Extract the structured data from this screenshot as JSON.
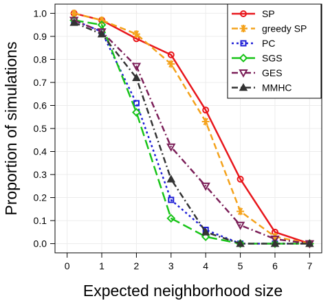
{
  "chart_data": {
    "type": "line",
    "title": "",
    "xlabel": "Expected neighborhood size",
    "ylabel": "Proportion of simulations",
    "xlim": [
      -0.35,
      7.35
    ],
    "ylim": [
      -0.04,
      1.04
    ],
    "xticks": [
      0,
      1,
      2,
      3,
      4,
      5,
      6,
      7
    ],
    "yticks": [
      0.0,
      0.1,
      0.2,
      0.3,
      0.4,
      0.5,
      0.6,
      0.7,
      0.8,
      0.9,
      1.0
    ],
    "ytick_labels": [
      "0.0",
      "0.1",
      "0.2",
      "0.3",
      "0.4",
      "0.5",
      "0.6",
      "0.7",
      "0.8",
      "0.9",
      "1.0"
    ],
    "grid": true,
    "legend_position": "top-right",
    "x": [
      0.2,
      1,
      2,
      3,
      4,
      5,
      6,
      7
    ],
    "series": [
      {
        "name": "SP",
        "color": "#e8161b",
        "dash": "solid",
        "marker": "circle",
        "values": [
          1.0,
          0.97,
          0.89,
          0.82,
          0.58,
          0.28,
          0.05,
          0.0
        ]
      },
      {
        "name": "greedy SP",
        "color": "#f4a21b",
        "dash": "dashed",
        "marker": "asterisk",
        "values": [
          1.0,
          0.97,
          0.91,
          0.78,
          0.53,
          0.14,
          0.03,
          0.0
        ]
      },
      {
        "name": "PC",
        "color": "#1c1cd6",
        "dash": "dotted",
        "marker": "square",
        "values": [
          0.97,
          0.92,
          0.61,
          0.19,
          0.06,
          0.0,
          0.0,
          0.0
        ]
      },
      {
        "name": "SGS",
        "color": "#18c418",
        "dash": "longdash",
        "marker": "diamond",
        "values": [
          0.97,
          0.95,
          0.57,
          0.11,
          0.03,
          0.0,
          0.0,
          0.0
        ]
      },
      {
        "name": "GES",
        "color": "#7b1e58",
        "dash": "dashdot",
        "marker": "triangle-down",
        "values": [
          0.97,
          0.92,
          0.77,
          0.42,
          0.25,
          0.08,
          0.02,
          0.0
        ]
      },
      {
        "name": "MMHC",
        "color": "#333333",
        "dash": "dashdot",
        "marker": "triangle-up",
        "values": [
          0.96,
          0.91,
          0.72,
          0.28,
          0.05,
          0.0,
          0.0,
          0.0
        ]
      }
    ]
  }
}
